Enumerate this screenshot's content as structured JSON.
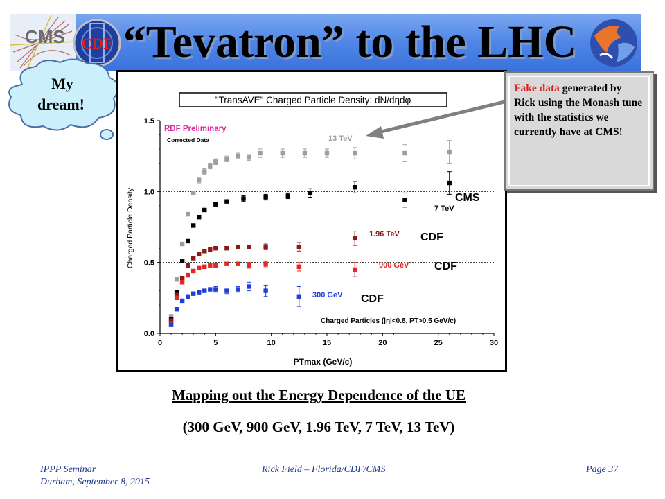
{
  "slide": {
    "title": "“Tevatron” to the LHC",
    "logos": {
      "left": "CMS",
      "cdf": "CDF"
    },
    "thought_bubble": {
      "line1": "My",
      "line2": "dream!"
    },
    "callout": {
      "red_part": "Fake data",
      "rest": " generated by Rick using the Monash tune with the statistics we currently have at CMS!"
    },
    "caption_line1": "Mapping out the Energy Dependence of the UE",
    "caption_line2": "(300 GeV, 900 GeV, 1.96 TeV, 7 TeV, 13 TeV)",
    "footer": {
      "left_line1": "IPPP Seminar",
      "left_line2": "Durham, September 8, 2015",
      "center": "Rick Field – Florida/CDF/CMS",
      "right": "Page 37"
    },
    "colors": {
      "title_bar": "#4f86e6",
      "s13": "#9e9e9e",
      "s7": "#000000",
      "s196": "#8b1a1a",
      "s900": "#e32626",
      "s300": "#1f3fd6",
      "callout_red": "#e02020"
    }
  },
  "chart_data": {
    "type": "scatter",
    "title": "\"TransAVE\" Charged Particle Density: dN/dηdφ",
    "xlabel": "PTmax (GeV/c)",
    "ylabel": "Charged Particle Density",
    "xlim": [
      0,
      30
    ],
    "ylim": [
      0.0,
      1.5
    ],
    "xticks": [
      "0",
      "5",
      "10",
      "15",
      "20",
      "25",
      "30"
    ],
    "yticks": [
      "0.0",
      "0.5",
      "1.0",
      "1.5"
    ],
    "reference_lines": [
      0.5,
      1.0
    ],
    "annotations": {
      "preliminary": "RDF Preliminary",
      "corrected": "Corrected Data",
      "selection": "Charged Particles (|η|<0.8, PT>0.5 GeV/c)",
      "cms": "CMS",
      "cdf": "CDF"
    },
    "series": [
      {
        "name": "13 TeV",
        "color": "#9e9e9e",
        "x": [
          1.0,
          1.5,
          2.0,
          2.5,
          3.0,
          3.5,
          4.0,
          4.5,
          5.0,
          6.0,
          7.0,
          8.0,
          9.0,
          11.0,
          13.0,
          15.0,
          17.5,
          22.0,
          26.0
        ],
        "y": [
          0.12,
          0.38,
          0.63,
          0.84,
          0.99,
          1.08,
          1.14,
          1.18,
          1.21,
          1.23,
          1.25,
          1.24,
          1.27,
          1.27,
          1.27,
          1.27,
          1.27,
          1.27,
          1.28
        ],
        "err": [
          0.01,
          0.01,
          0.01,
          0.01,
          0.01,
          0.02,
          0.02,
          0.02,
          0.02,
          0.02,
          0.02,
          0.02,
          0.03,
          0.03,
          0.03,
          0.03,
          0.04,
          0.06,
          0.08
        ]
      },
      {
        "name": "7 TeV",
        "color": "#000000",
        "x": [
          1.0,
          1.5,
          2.0,
          2.5,
          3.0,
          3.5,
          4.0,
          5.0,
          6.0,
          7.5,
          9.5,
          11.5,
          13.5,
          17.5,
          22.0,
          26.0
        ],
        "y": [
          0.1,
          0.29,
          0.51,
          0.65,
          0.76,
          0.82,
          0.87,
          0.91,
          0.93,
          0.95,
          0.96,
          0.97,
          0.99,
          1.03,
          0.94,
          1.06
        ],
        "err": [
          0.01,
          0.01,
          0.01,
          0.01,
          0.01,
          0.01,
          0.01,
          0.01,
          0.01,
          0.02,
          0.02,
          0.02,
          0.03,
          0.04,
          0.05,
          0.08
        ]
      },
      {
        "name": "1.96 TeV",
        "color": "#8b1a1a",
        "x": [
          1.0,
          1.5,
          2.0,
          2.5,
          3.0,
          3.5,
          4.0,
          4.5,
          5.0,
          6.0,
          7.0,
          8.0,
          9.5,
          12.5,
          17.5
        ],
        "y": [
          0.09,
          0.27,
          0.39,
          0.48,
          0.53,
          0.56,
          0.58,
          0.59,
          0.6,
          0.6,
          0.61,
          0.61,
          0.61,
          0.61,
          0.67
        ],
        "err": [
          0.01,
          0.01,
          0.01,
          0.01,
          0.01,
          0.01,
          0.01,
          0.01,
          0.01,
          0.01,
          0.01,
          0.01,
          0.02,
          0.03,
          0.05
        ]
      },
      {
        "name": "900 GeV",
        "color": "#e32626",
        "x": [
          1.0,
          1.5,
          2.0,
          2.5,
          3.0,
          3.5,
          4.0,
          4.5,
          5.0,
          6.0,
          7.0,
          8.0,
          9.5,
          12.5,
          17.5
        ],
        "y": [
          0.07,
          0.25,
          0.36,
          0.41,
          0.44,
          0.46,
          0.47,
          0.48,
          0.48,
          0.49,
          0.49,
          0.48,
          0.49,
          0.47,
          0.45
        ],
        "err": [
          0.01,
          0.01,
          0.01,
          0.01,
          0.01,
          0.01,
          0.01,
          0.01,
          0.01,
          0.01,
          0.01,
          0.02,
          0.02,
          0.03,
          0.05
        ]
      },
      {
        "name": "300 GeV",
        "color": "#1f3fd6",
        "x": [
          1.0,
          1.5,
          2.0,
          2.5,
          3.0,
          3.5,
          4.0,
          4.5,
          5.0,
          6.0,
          7.0,
          8.0,
          9.5,
          12.5
        ],
        "y": [
          0.06,
          0.17,
          0.23,
          0.26,
          0.28,
          0.29,
          0.3,
          0.31,
          0.31,
          0.3,
          0.31,
          0.33,
          0.3,
          0.26
        ],
        "err": [
          0.01,
          0.01,
          0.01,
          0.01,
          0.01,
          0.01,
          0.01,
          0.01,
          0.02,
          0.02,
          0.02,
          0.03,
          0.04,
          0.07
        ]
      }
    ],
    "series_label_extras": {
      "7 TeV": "CMS",
      "1.96 TeV": "CDF",
      "900 GeV": "CDF",
      "300 GeV": "CDF"
    }
  }
}
